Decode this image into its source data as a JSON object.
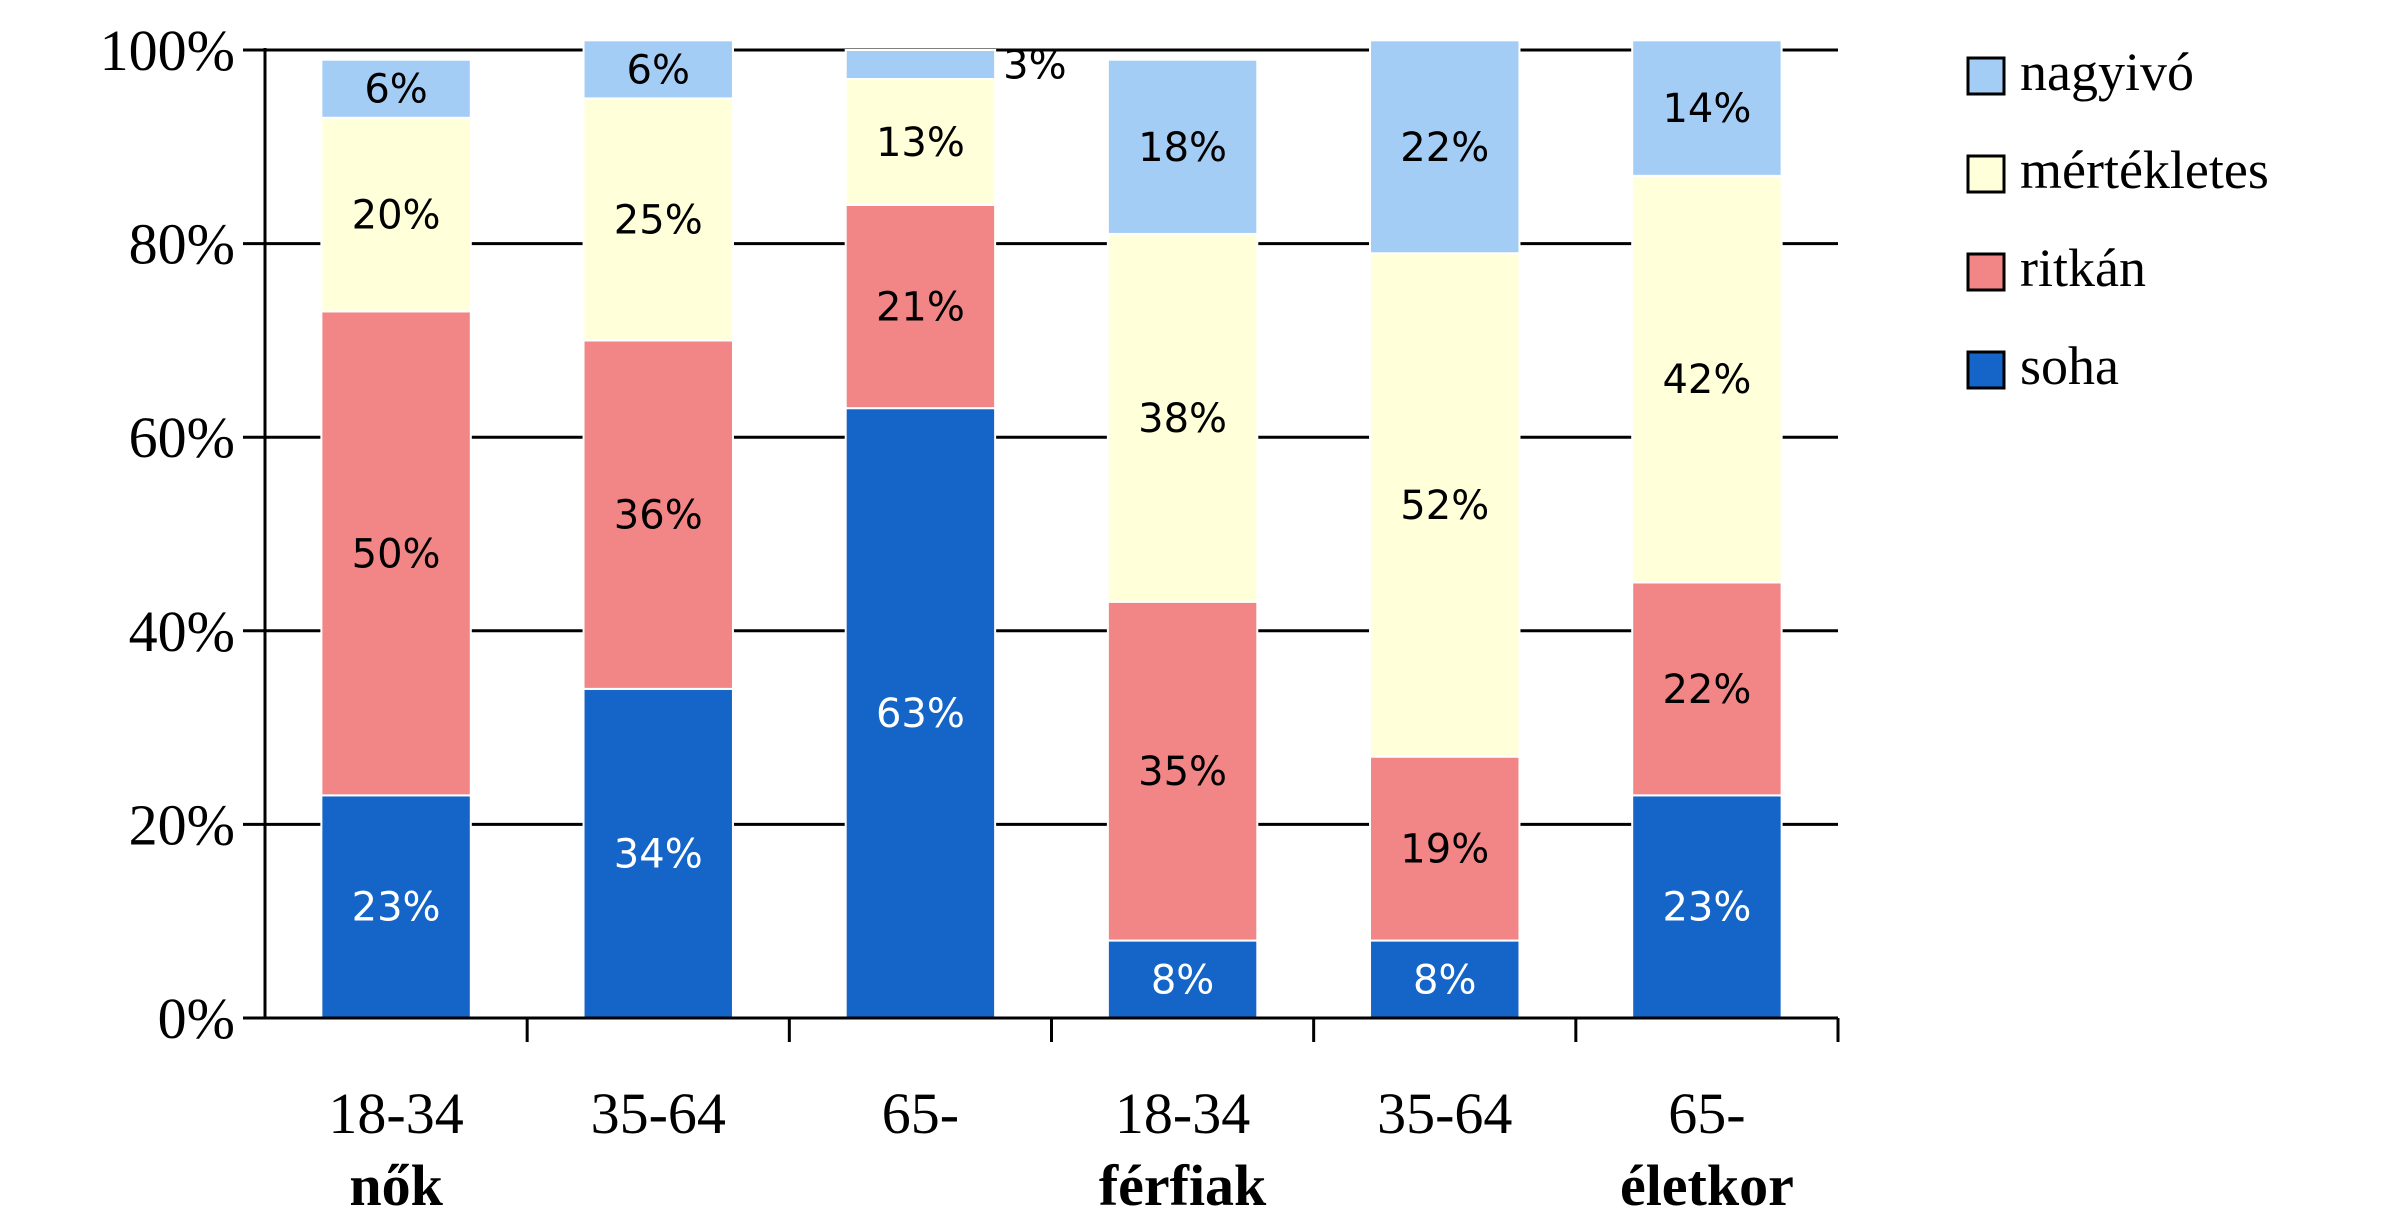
{
  "chart_data": {
    "type": "bar",
    "stacked": true,
    "percent_stacked": true,
    "categories": [
      "18-34",
      "35-64",
      "65-",
      "18-34",
      "35-64",
      "65-"
    ],
    "groups": [
      {
        "label": "nők",
        "category_indices": [
          0,
          1,
          2
        ]
      },
      {
        "label": "férfiak",
        "category_indices": [
          3,
          4,
          5
        ]
      }
    ],
    "axis_caption": "életkor",
    "series": [
      {
        "name": "soha",
        "values": [
          23,
          34,
          63,
          8,
          8,
          23
        ],
        "labels": [
          "23%",
          "34%",
          "63%",
          "8%",
          "8%",
          "23%"
        ]
      },
      {
        "name": "ritkán",
        "values": [
          50,
          36,
          21,
          35,
          19,
          22
        ],
        "labels": [
          "50%",
          "36%",
          "21%",
          "35%",
          "19%",
          "22%"
        ]
      },
      {
        "name": "mértékletes",
        "values": [
          20,
          25,
          13,
          38,
          52,
          42
        ],
        "labels": [
          "20%",
          "25%",
          "13%",
          "38%",
          "52%",
          "42%"
        ]
      },
      {
        "name": "nagyivó",
        "values": [
          6,
          6,
          3,
          18,
          22,
          14
        ],
        "labels": [
          "6%",
          "6%",
          "3%",
          "18%",
          "22%",
          "14%"
        ]
      }
    ],
    "series_colors": {
      "soha": "#1565c8",
      "ritkán": "#f28585",
      "mértékletes": "#ffffd9",
      "nagyivó": "#a4cdf6"
    },
    "label_colors": {
      "soha": "#ffffff",
      "ritkán": "#000000",
      "mértékletes": "#000000",
      "nagyivó": "#000000"
    },
    "y_tick_labels": [
      "0%",
      "20%",
      "40%",
      "60%",
      "80%",
      "100%"
    ],
    "ylim": [
      0,
      100
    ],
    "grid": true,
    "legend_position": "top-right",
    "legend_order": [
      "nagyivó",
      "mértékletes",
      "ritkán",
      "soha"
    ]
  }
}
